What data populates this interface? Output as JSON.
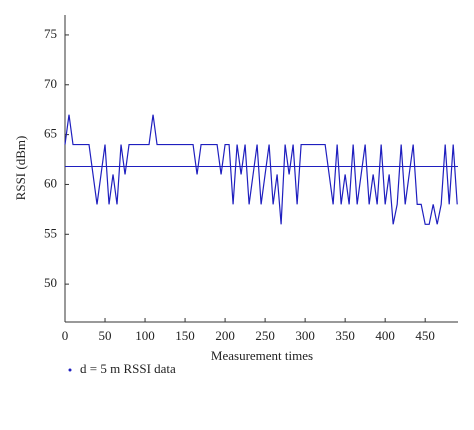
{
  "chart_data": {
    "type": "line",
    "xlabel": "Measurement times",
    "ylabel": "RSSI (dBm)",
    "x": [
      0,
      5,
      10,
      15,
      20,
      25,
      30,
      35,
      40,
      45,
      50,
      55,
      60,
      65,
      70,
      75,
      80,
      85,
      90,
      95,
      100,
      105,
      110,
      115,
      120,
      125,
      130,
      135,
      140,
      145,
      150,
      155,
      160,
      165,
      170,
      175,
      180,
      185,
      190,
      195,
      200,
      205,
      210,
      215,
      220,
      225,
      230,
      235,
      240,
      245,
      250,
      255,
      260,
      265,
      270,
      275,
      280,
      285,
      290,
      295,
      300,
      305,
      310,
      315,
      320,
      325,
      330,
      335,
      340,
      345,
      350,
      355,
      360,
      365,
      370,
      375,
      380,
      385,
      390,
      395,
      400,
      405,
      410,
      415,
      420,
      425,
      430,
      435,
      440,
      445,
      450,
      455,
      460,
      465,
      470,
      475,
      480,
      485,
      490
    ],
    "series": [
      {
        "name": "d = 5 m RSSI data",
        "color": "#1f1fbf",
        "values": [
          64,
          67,
          64,
          64,
          64,
          64,
          64,
          61,
          58,
          61,
          64,
          58,
          61,
          58,
          64,
          61,
          64,
          64,
          64,
          64,
          64,
          64,
          67,
          64,
          64,
          64,
          64,
          64,
          64,
          64,
          64,
          64,
          64,
          61,
          64,
          64,
          64,
          64,
          64,
          61,
          64,
          64,
          58,
          64,
          61,
          64,
          58,
          61,
          64,
          58,
          61,
          64,
          58,
          61,
          56,
          64,
          61,
          64,
          58,
          64,
          64,
          64,
          64,
          64,
          64,
          64,
          61,
          58,
          64,
          58,
          61,
          58,
          64,
          58,
          61,
          64,
          58,
          61,
          58,
          64,
          58,
          61,
          56,
          58,
          64,
          58,
          61,
          64,
          58,
          58,
          56,
          56,
          58,
          56,
          58,
          64,
          58,
          64,
          58
        ]
      }
    ],
    "mean_line": 61.8,
    "xlim": [
      0,
      491
    ],
    "ylim": [
      46.2,
      77
    ],
    "xticks": [
      0,
      50,
      100,
      150,
      200,
      250,
      300,
      350,
      400,
      450
    ],
    "yticks": [
      50,
      55,
      60,
      65,
      70,
      75
    ]
  }
}
